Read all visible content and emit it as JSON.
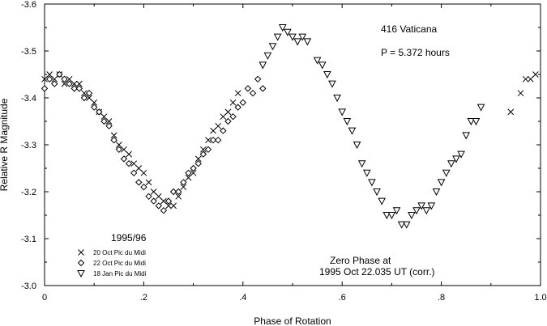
{
  "chart_data": {
    "type": "scatter",
    "title": "416 Vaticana",
    "period_text": "P = 5.372 hours",
    "epoch_heading": "1995/96",
    "zero_phase_line1": "Zero Phase at",
    "zero_phase_line2": "1995 Oct 22.035 UT (corr.)",
    "xlabel": "Phase of Rotation",
    "ylabel": "Relative R Magnitude",
    "xlim": [
      0,
      1
    ],
    "ylim": [
      -3.0,
      -3.6
    ],
    "y_inverted": true,
    "x_ticks": [
      {
        "v": 0,
        "label": "0"
      },
      {
        "v": 0.2,
        "label": ".2"
      },
      {
        "v": 0.4,
        "label": ".4"
      },
      {
        "v": 0.6,
        "label": ".6"
      },
      {
        "v": 0.8,
        "label": ".8"
      },
      {
        "v": 1.0,
        "label": "1.0"
      }
    ],
    "y_ticks": [
      {
        "v": -3.0,
        "label": "-3.0"
      },
      {
        "v": -3.1,
        "label": "-3.1"
      },
      {
        "v": -3.2,
        "label": "-3.2"
      },
      {
        "v": -3.3,
        "label": "-3.3"
      },
      {
        "v": -3.4,
        "label": "-3.4"
      },
      {
        "v": -3.5,
        "label": "-3.5"
      },
      {
        "v": -3.6,
        "label": "-3.6"
      }
    ],
    "grid": false,
    "legend_position": "bottom-left",
    "series": [
      {
        "name": "20 Oct Pic du Midi",
        "marker": "x",
        "points": [
          [
            0.0,
            -3.44
          ],
          [
            0.01,
            -3.45
          ],
          [
            0.02,
            -3.44
          ],
          [
            0.03,
            -3.45
          ],
          [
            0.04,
            -3.43
          ],
          [
            0.05,
            -3.44
          ],
          [
            0.06,
            -3.43
          ],
          [
            0.07,
            -3.43
          ],
          [
            0.08,
            -3.41
          ],
          [
            0.09,
            -3.4
          ],
          [
            0.1,
            -3.39
          ],
          [
            0.11,
            -3.37
          ],
          [
            0.12,
            -3.36
          ],
          [
            0.13,
            -3.35
          ],
          [
            0.14,
            -3.32
          ],
          [
            0.15,
            -3.3
          ],
          [
            0.16,
            -3.29
          ],
          [
            0.17,
            -3.28
          ],
          [
            0.18,
            -3.26
          ],
          [
            0.19,
            -3.25
          ],
          [
            0.2,
            -3.24
          ],
          [
            0.21,
            -3.22
          ],
          [
            0.22,
            -3.2
          ],
          [
            0.23,
            -3.19
          ],
          [
            0.24,
            -3.18
          ],
          [
            0.25,
            -3.17
          ],
          [
            0.26,
            -3.17
          ],
          [
            0.27,
            -3.19
          ],
          [
            0.28,
            -3.21
          ],
          [
            0.29,
            -3.23
          ],
          [
            0.3,
            -3.24
          ],
          [
            0.31,
            -3.27
          ],
          [
            0.32,
            -3.29
          ],
          [
            0.33,
            -3.31
          ],
          [
            0.34,
            -3.33
          ],
          [
            0.35,
            -3.34
          ],
          [
            0.36,
            -3.36
          ],
          [
            0.37,
            -3.37
          ],
          [
            0.38,
            -3.39
          ],
          [
            0.39,
            -3.41
          ],
          [
            0.94,
            -3.37
          ],
          [
            0.96,
            -3.41
          ],
          [
            0.97,
            -3.44
          ],
          [
            0.98,
            -3.44
          ],
          [
            0.99,
            -3.45
          ]
        ]
      },
      {
        "name": "22 Oct Pic du Midi",
        "marker": "diamond",
        "points": [
          [
            0.0,
            -3.42
          ],
          [
            0.01,
            -3.44
          ],
          [
            0.02,
            -3.43
          ],
          [
            0.03,
            -3.45
          ],
          [
            0.04,
            -3.44
          ],
          [
            0.05,
            -3.43
          ],
          [
            0.06,
            -3.42
          ],
          [
            0.07,
            -3.42
          ],
          [
            0.08,
            -3.4
          ],
          [
            0.09,
            -3.41
          ],
          [
            0.1,
            -3.38
          ],
          [
            0.11,
            -3.37
          ],
          [
            0.12,
            -3.35
          ],
          [
            0.13,
            -3.34
          ],
          [
            0.14,
            -3.31
          ],
          [
            0.15,
            -3.29
          ],
          [
            0.16,
            -3.27
          ],
          [
            0.17,
            -3.26
          ],
          [
            0.18,
            -3.24
          ],
          [
            0.19,
            -3.22
          ],
          [
            0.2,
            -3.21
          ],
          [
            0.21,
            -3.19
          ],
          [
            0.22,
            -3.18
          ],
          [
            0.23,
            -3.17
          ],
          [
            0.24,
            -3.16
          ],
          [
            0.25,
            -3.18
          ],
          [
            0.26,
            -3.2
          ],
          [
            0.27,
            -3.2
          ],
          [
            0.28,
            -3.22
          ],
          [
            0.29,
            -3.24
          ],
          [
            0.3,
            -3.25
          ],
          [
            0.31,
            -3.26
          ],
          [
            0.32,
            -3.28
          ],
          [
            0.33,
            -3.29
          ],
          [
            0.34,
            -3.31
          ],
          [
            0.35,
            -3.31
          ],
          [
            0.36,
            -3.33
          ],
          [
            0.37,
            -3.35
          ],
          [
            0.38,
            -3.36
          ],
          [
            0.39,
            -3.38
          ],
          [
            0.4,
            -3.39
          ],
          [
            0.41,
            -3.42
          ],
          [
            0.42,
            -3.41
          ],
          [
            0.43,
            -3.44
          ],
          [
            0.44,
            -3.42
          ]
        ]
      },
      {
        "name": "18 Jan Pic du Midi",
        "marker": "triangle-down",
        "points": [
          [
            0.44,
            -3.47
          ],
          [
            0.45,
            -3.49
          ],
          [
            0.46,
            -3.51
          ],
          [
            0.47,
            -3.53
          ],
          [
            0.48,
            -3.55
          ],
          [
            0.49,
            -3.54
          ],
          [
            0.5,
            -3.53
          ],
          [
            0.51,
            -3.52
          ],
          [
            0.52,
            -3.53
          ],
          [
            0.53,
            -3.52
          ],
          [
            0.55,
            -3.48
          ],
          [
            0.56,
            -3.47
          ],
          [
            0.57,
            -3.45
          ],
          [
            0.58,
            -3.43
          ],
          [
            0.59,
            -3.4
          ],
          [
            0.6,
            -3.37
          ],
          [
            0.61,
            -3.35
          ],
          [
            0.62,
            -3.33
          ],
          [
            0.63,
            -3.3
          ],
          [
            0.64,
            -3.26
          ],
          [
            0.65,
            -3.24
          ],
          [
            0.66,
            -3.22
          ],
          [
            0.67,
            -3.2
          ],
          [
            0.68,
            -3.18
          ],
          [
            0.69,
            -3.15
          ],
          [
            0.7,
            -3.15
          ],
          [
            0.71,
            -3.16
          ],
          [
            0.72,
            -3.13
          ],
          [
            0.73,
            -3.13
          ],
          [
            0.74,
            -3.15
          ],
          [
            0.75,
            -3.16
          ],
          [
            0.76,
            -3.17
          ],
          [
            0.77,
            -3.16
          ],
          [
            0.78,
            -3.17
          ],
          [
            0.79,
            -3.2
          ],
          [
            0.8,
            -3.22
          ],
          [
            0.81,
            -3.24
          ],
          [
            0.82,
            -3.26
          ],
          [
            0.83,
            -3.27
          ],
          [
            0.84,
            -3.28
          ],
          [
            0.85,
            -3.32
          ],
          [
            0.86,
            -3.35
          ],
          [
            0.87,
            -3.35
          ],
          [
            0.88,
            -3.38
          ]
        ]
      }
    ]
  }
}
